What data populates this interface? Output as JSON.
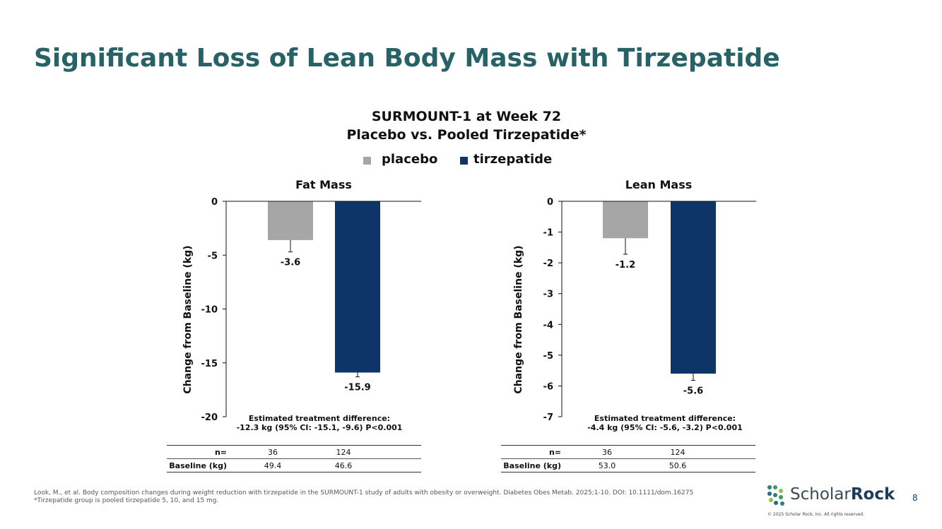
{
  "slide": {
    "title": "Significant Loss of Lean Body Mass with Tirzepatide",
    "page_number": "8"
  },
  "heading": {
    "line1": "SURMOUNT-1 at Week 72",
    "line2": "Placebo vs. Pooled Tirzepatide*"
  },
  "legend": {
    "items": [
      {
        "label": "placebo",
        "color": "#a6a6a6"
      },
      {
        "label": "tirzepatide",
        "color": "#0e3568"
      }
    ]
  },
  "chart_data": [
    {
      "type": "bar",
      "title": "Fat Mass",
      "ylabel": "Change from Baseline (kg)",
      "ylim": [
        -20,
        0
      ],
      "yticks": [
        0,
        -5,
        -10,
        -15,
        -20
      ],
      "categories": [
        "placebo",
        "tirzepatide"
      ],
      "values": [
        -3.6,
        -15.9
      ],
      "error_bars": [
        -4.7,
        -16.3
      ],
      "data_labels": [
        "-3.6",
        "-15.9"
      ],
      "annotation_line1": "Estimated treatment difference:",
      "annotation_line2": "-12.3 kg (95% CI: -15.1, -9.6) P<0.001"
    },
    {
      "type": "bar",
      "title": "Lean Mass",
      "ylabel": "Change from Baseline (kg)",
      "ylim": [
        -7,
        0
      ],
      "yticks": [
        0,
        -1,
        -2,
        -3,
        -4,
        -5,
        -6,
        -7
      ],
      "categories": [
        "placebo",
        "tirzepatide"
      ],
      "values": [
        -1.2,
        -5.6
      ],
      "error_bars": [
        -1.72,
        -5.82
      ],
      "data_labels": [
        "-1.2",
        "-5.6"
      ],
      "annotation_line1": "Estimated treatment difference:",
      "annotation_line2": "-4.4 kg (95% CI: -5.6, -3.2) P<0.001"
    }
  ],
  "tables": [
    {
      "rows": [
        {
          "label": "n=",
          "placebo": "36",
          "tirzepatide": "124"
        },
        {
          "label": "Baseline (kg)",
          "placebo": "49.4",
          "tirzepatide": "46.6"
        }
      ]
    },
    {
      "rows": [
        {
          "label": "n=",
          "placebo": "36",
          "tirzepatide": "124"
        },
        {
          "label": "Baseline (kg)",
          "placebo": "53.0",
          "tirzepatide": "50.6"
        }
      ]
    }
  ],
  "footnote": {
    "line1": "Look, M., et al. Body composition changes during weight reduction with tirzepatide in the SURMOUNT-1 study of adults with obesity or overweight. Diabetes Obes Metab. 2025;1-10. DOI: 10.1111/dom.16275",
    "line2": "*Tirzepatide group is pooled tirzepatide 5, 10, and 15 mg."
  },
  "logo": {
    "text_light": "Scholar",
    "text_bold": "Rock",
    "copyright": "© 2025 Scholar Rock, Inc. All rights reserved."
  }
}
